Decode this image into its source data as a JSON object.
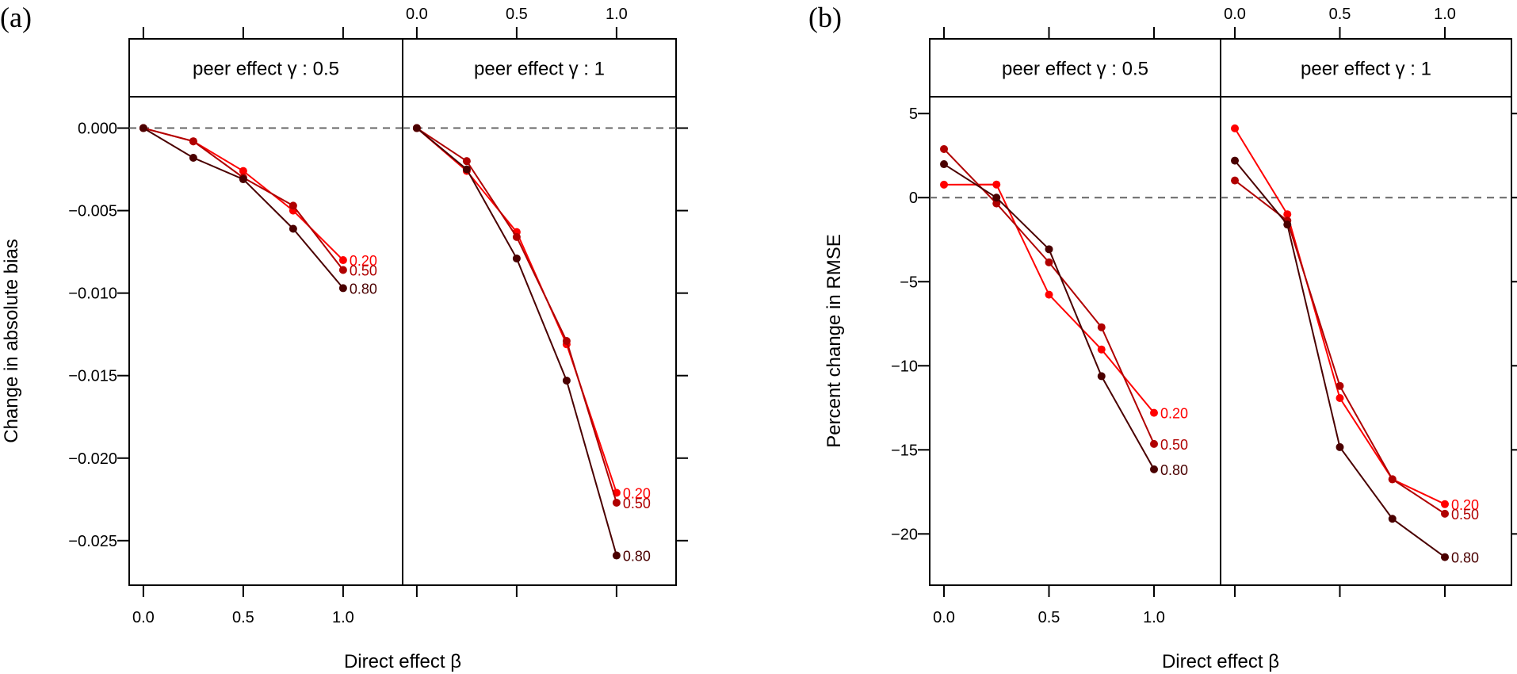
{
  "chart_data": [
    {
      "type": "line",
      "panel_label": "(a)",
      "title": "",
      "xlabel": "Direct effect β",
      "ylabel": "Change in absolute bias",
      "x": [
        0,
        0.25,
        0.5,
        0.75,
        1.0
      ],
      "xticks": [
        0.0,
        0.5,
        1.0
      ],
      "xtick_labels": [
        "0.0",
        "0.5",
        "1.0"
      ],
      "xlim": [
        -0.071,
        1.298
      ],
      "yticks": [
        0.0,
        -0.005,
        -0.01,
        -0.015,
        -0.02,
        -0.025
      ],
      "ytick_labels": [
        "0.000",
        "-0.005",
        "-0.010",
        "-0.015",
        "-0.020",
        "-0.025"
      ],
      "ylim": [
        -0.0277,
        0.0019
      ],
      "reference_line": 0,
      "grid": false,
      "legend": "inline end-of-line labels",
      "facets": [
        {
          "strip": "peer effect γ : 0.5",
          "series": [
            {
              "name": "0.20",
              "color": "#ff0000",
              "values": [
                0.0,
                -0.0008,
                -0.0026,
                -0.005,
                -0.008
              ]
            },
            {
              "name": "0.50",
              "color": "#b00000",
              "values": [
                0.0,
                -0.0008,
                -0.003,
                -0.0047,
                -0.0086
              ]
            },
            {
              "name": "0.80",
              "color": "#4a0000",
              "values": [
                0.0,
                -0.0018,
                -0.0031,
                -0.0061,
                -0.0097
              ]
            }
          ]
        },
        {
          "strip": "peer effect γ : 1",
          "series": [
            {
              "name": "0.20",
              "color": "#ff0000",
              "values": [
                0.0,
                -0.0026,
                -0.0063,
                -0.0131,
                -0.0221
              ]
            },
            {
              "name": "0.50",
              "color": "#b00000",
              "values": [
                0.0,
                -0.002,
                -0.0066,
                -0.0129,
                -0.0227
              ]
            },
            {
              "name": "0.80",
              "color": "#4a0000",
              "values": [
                0.0,
                -0.0025,
                -0.0079,
                -0.0153,
                -0.0259
              ]
            }
          ]
        }
      ]
    },
    {
      "type": "line",
      "panel_label": "(b)",
      "title": "",
      "xlabel": "Direct effect β",
      "ylabel": "Percent change in RMSE",
      "x": [
        0,
        0.25,
        0.5,
        0.75,
        1.0
      ],
      "xticks": [
        0.0,
        0.5,
        1.0
      ],
      "xtick_labels": [
        "0.0",
        "0.5",
        "1.0"
      ],
      "xlim": [
        -0.068,
        1.317
      ],
      "yticks": [
        5,
        0,
        -5,
        -10,
        -15,
        -20
      ],
      "ytick_labels": [
        "5",
        "0",
        "-5",
        "-10",
        "-15",
        "-20"
      ],
      "ylim": [
        -23.05,
        6.0
      ],
      "reference_line": 0,
      "grid": false,
      "legend": "inline end-of-line labels",
      "facets": [
        {
          "strip": "peer effect γ : 0.5",
          "series": [
            {
              "name": "0.20",
              "color": "#ff0000",
              "values": [
                0.77,
                0.78,
                -5.77,
                -9.03,
                -12.8
              ]
            },
            {
              "name": "0.50",
              "color": "#b00000",
              "values": [
                2.89,
                -0.35,
                -3.85,
                -7.71,
                -14.65
              ]
            },
            {
              "name": "0.80",
              "color": "#4a0000",
              "values": [
                1.99,
                0.0,
                -3.07,
                -10.62,
                -16.16
              ]
            }
          ]
        },
        {
          "strip": "peer effect γ : 1",
          "series": [
            {
              "name": "0.20",
              "color": "#ff0000",
              "values": [
                4.12,
                -0.99,
                -11.92,
                -16.75,
                -18.23
              ]
            },
            {
              "name": "0.50",
              "color": "#b00000",
              "values": [
                1.02,
                -1.37,
                -11.2,
                -16.75,
                -18.8
              ]
            },
            {
              "name": "0.80",
              "color": "#4a0000",
              "values": [
                2.2,
                -1.6,
                -14.84,
                -19.1,
                -21.38
              ]
            }
          ]
        }
      ]
    }
  ]
}
